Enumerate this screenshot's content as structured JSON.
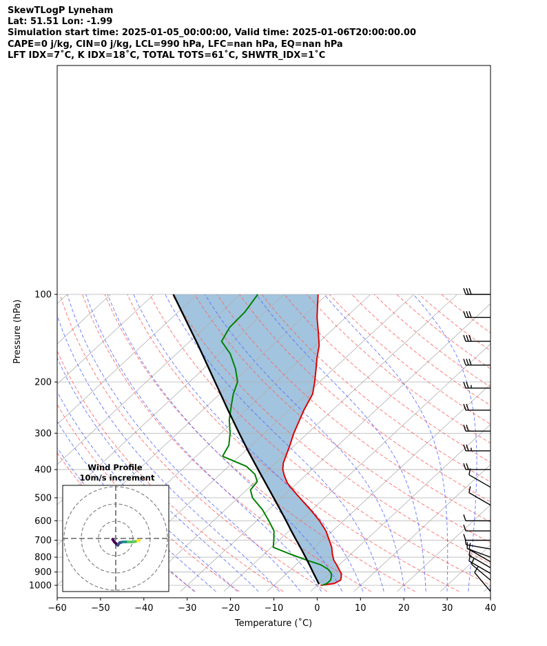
{
  "header": {
    "line1": "SkewTLogP Lyneham",
    "line2": "Lat: 51.51   Lon: -1.99",
    "line3": "Simulation start time: 2025-01-05_00:00:00, Valid time: 2025-01-06T20:00:00.00",
    "line4": "CAPE=0 j/kg, CIN=0 j/kg, LCL=990 hPa, LFC=nan hPa, EQ=nan hPa",
    "line5": "LFT IDX=7˚C, K IDX=18˚C, TOTAL TOTS=61˚C, SHWTR_IDX=1˚C"
  },
  "chart_data": {
    "type": "line",
    "xlabel": "Temperature (˚C)",
    "ylabel": "Pressure (hPa)",
    "xlim": [
      -60,
      40
    ],
    "ylim": [
      1050,
      100
    ],
    "yscale": "log",
    "xticks": [
      -60,
      -50,
      -40,
      -30,
      -20,
      -10,
      0,
      10,
      20,
      30,
      40
    ],
    "yticks": [
      100,
      200,
      300,
      400,
      500,
      600,
      700,
      800,
      900,
      1000
    ],
    "skew_deg_per_log10": 72.3,
    "grid": true,
    "colors": {
      "temperature": "#e00000",
      "dewpoint": "#008000",
      "parcel": "#000000",
      "fill": "#a2c4de",
      "dry_adiabat": "#ff6060",
      "moist_adiabat": "#5a6bff",
      "mixing_ratio": "#9a9a9a",
      "wind_barb": "#000000"
    },
    "series": [
      {
        "key": "temperature",
        "p": [
          1000,
          985,
          960,
          940,
          910,
          880,
          850,
          820,
          780,
          740,
          700,
          650,
          600,
          550,
          500,
          470,
          445,
          420,
          400,
          380,
          350,
          330,
          300,
          250,
          220,
          200,
          180,
          165,
          150,
          135,
          120,
          100
        ],
        "t": [
          0.8,
          3.5,
          4.1,
          3.6,
          2.6,
          1.0,
          -0.6,
          -2.4,
          -4.3,
          -6.1,
          -8.4,
          -11.5,
          -15.5,
          -20.3,
          -25.8,
          -29.3,
          -32.3,
          -34.8,
          -36.7,
          -38.2,
          -39.9,
          -41.1,
          -43.2,
          -46.6,
          -48.6,
          -51.1,
          -54.1,
          -56.6,
          -59.1,
          -62.6,
          -66.6,
          -72.1
        ]
      },
      {
        "key": "dewpoint",
        "p": [
          1000,
          985,
          960,
          940,
          910,
          880,
          850,
          820,
          780,
          740,
          700,
          650,
          600,
          550,
          500,
          470,
          440,
          415,
          390,
          360,
          330,
          300,
          270,
          240,
          220,
          200,
          180,
          160,
          145,
          130,
          115,
          100
        ],
        "t": [
          1.2,
          1.8,
          1.8,
          1.3,
          0.3,
          -1.5,
          -4.3,
          -8.6,
          -14.1,
          -19.6,
          -21.2,
          -23.5,
          -27.2,
          -31.4,
          -36.7,
          -39.1,
          -39.6,
          -42.0,
          -45.9,
          -53.9,
          -55.2,
          -57.9,
          -61.4,
          -64.6,
          -66.9,
          -68.9,
          -72.7,
          -77.6,
          -82.7,
          -84.3,
          -84.6,
          -86.0
        ]
      },
      {
        "key": "parcel",
        "p": [
          990,
          950,
          900,
          850,
          800,
          750,
          700,
          650,
          600,
          550,
          500,
          450,
          400,
          350,
          300,
          250,
          200,
          150,
          100
        ],
        "t": [
          0.1,
          -1.8,
          -4.3,
          -6.9,
          -9.7,
          -12.7,
          -16.0,
          -19.5,
          -23.2,
          -27.3,
          -31.8,
          -36.8,
          -42.4,
          -48.7,
          -55.8,
          -64.1,
          -74.1,
          -87.0,
          -105.5
        ]
      }
    ],
    "wind_barbs": {
      "p": [
        100,
        120,
        145,
        175,
        210,
        250,
        295,
        345,
        400,
        460,
        530,
        600,
        650,
        700,
        750,
        800,
        830,
        870,
        910,
        960,
        1050
      ],
      "speed_kt": [
        30,
        30,
        30,
        30,
        25,
        20,
        20,
        25,
        20,
        10,
        10,
        10,
        10,
        10,
        10,
        10,
        10,
        10,
        10,
        10,
        10
      ],
      "dir_deg": [
        270,
        270,
        270,
        270,
        270,
        270,
        270,
        270,
        270,
        300,
        300,
        270,
        270,
        270,
        280,
        290,
        300,
        300,
        300,
        310,
        320
      ]
    },
    "inset": {
      "title": "Wind Profile",
      "subtitle": "10m/s increment",
      "u": [
        -9.0,
        -8.0,
        -6.0,
        -5.0,
        -3.0,
        0.0,
        3.0,
        5.5,
        6.5
      ],
      "v": [
        1.5,
        0.0,
        -2.0,
        -0.5,
        0.0,
        0.0,
        0.0,
        0.5,
        1.0
      ],
      "colormap": [
        "#440154",
        "#3b528b",
        "#21918c",
        "#5ec962",
        "#fde725"
      ]
    }
  }
}
